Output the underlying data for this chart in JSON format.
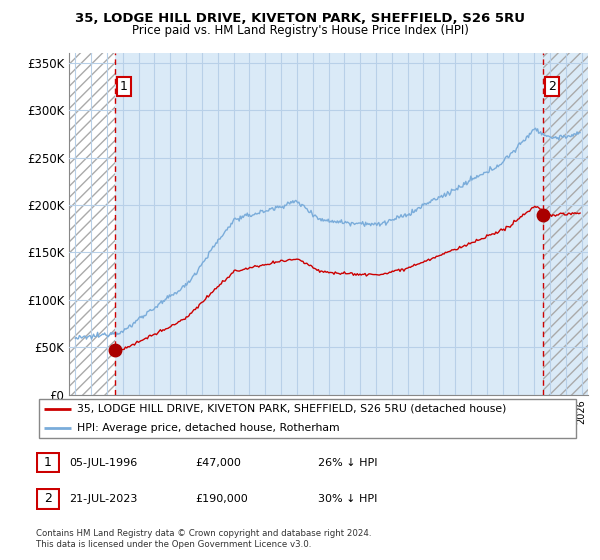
{
  "title1": "35, LODGE HILL DRIVE, KIVETON PARK, SHEFFIELD, S26 5RU",
  "title2": "Price paid vs. HM Land Registry's House Price Index (HPI)",
  "ylabel_ticks": [
    "£0",
    "£50K",
    "£100K",
    "£150K",
    "£200K",
    "£250K",
    "£300K",
    "£350K"
  ],
  "ylim": [
    0,
    360000
  ],
  "xlim_start": 1993.6,
  "xlim_end": 2026.4,
  "sale1_x": 1996.51,
  "sale1_y": 47000,
  "sale1_label": "1",
  "sale2_x": 2023.55,
  "sale2_y": 190000,
  "sale2_label": "2",
  "legend_line1": "35, LODGE HILL DRIVE, KIVETON PARK, SHEFFIELD, S26 5RU (detached house)",
  "legend_line2": "HPI: Average price, detached house, Rotherham",
  "footer": "Contains HM Land Registry data © Crown copyright and database right 2024.\nThis data is licensed under the Open Government Licence v3.0.",
  "chart_bg_color": "#daeaf7",
  "hatch_region_color": "#ffffff",
  "hatch_right_color": "#daeaf7",
  "grid_color": "#b8d0e8",
  "line_red_color": "#cc0000",
  "line_blue_color": "#7aacda",
  "sale_marker_color": "#aa0000",
  "dashed_line_color": "#cc0000",
  "legend_border_color": "#888888",
  "spine_color": "#888888",
  "title_fontsize": 9.5,
  "subtitle_fontsize": 8.5
}
